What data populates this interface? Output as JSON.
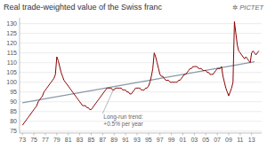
{
  "chart_data": {
    "type": "line",
    "title": "Real trade-weighted value of the Swiss franc",
    "brand": "✲ PICTET",
    "color": "#8b0000",
    "grid": true,
    "ylim": [
      74,
      133
    ],
    "yticks": [
      75,
      80,
      85,
      90,
      95,
      100,
      105,
      110,
      115,
      120,
      125,
      130
    ],
    "categories": [
      "73",
      null,
      null,
      null,
      null,
      null,
      null,
      null,
      "75",
      null,
      null,
      null,
      null,
      null,
      null,
      null,
      "77",
      null,
      null,
      null,
      null,
      null,
      null,
      null,
      "79",
      null,
      null,
      null,
      null,
      null,
      null,
      null,
      "81",
      null,
      null,
      null,
      null,
      null,
      null,
      null,
      "83",
      null,
      null,
      null,
      null,
      null,
      null,
      null,
      "85",
      null,
      null,
      null,
      null,
      null,
      null,
      null,
      "87",
      null,
      null,
      null,
      null,
      null,
      null,
      null,
      "89",
      null,
      null,
      null,
      null,
      null,
      null,
      null,
      "91",
      null,
      null,
      null,
      null,
      null,
      null,
      null,
      "93",
      null,
      null,
      null,
      null,
      null,
      null,
      null,
      "95",
      null,
      null,
      null,
      null,
      null,
      null,
      null,
      "97",
      null,
      null,
      null,
      null,
      null,
      null,
      null,
      "99",
      null,
      null,
      null,
      null,
      null,
      null,
      null,
      "01",
      null,
      null,
      null,
      null,
      null,
      null,
      null,
      "03",
      null,
      null,
      null,
      null,
      null,
      null,
      null,
      "05",
      null,
      null,
      null,
      null,
      null,
      null,
      null,
      "07",
      null,
      null,
      null,
      null,
      null,
      null,
      null,
      "09",
      null,
      null,
      null,
      null,
      null,
      null,
      null,
      "11",
      null,
      null,
      null,
      null,
      null,
      null,
      null,
      "13",
      null,
      null,
      null,
      null,
      null
    ],
    "values": [
      78,
      79,
      80,
      81,
      82,
      83,
      84,
      85,
      86,
      87,
      88,
      90,
      91,
      92,
      93,
      95,
      96,
      97,
      98,
      99,
      100,
      101,
      102,
      104,
      113,
      111,
      108,
      105,
      103,
      101,
      100,
      99,
      98,
      97,
      96,
      95,
      94,
      93,
      92,
      91,
      90,
      89,
      88,
      88,
      88,
      87,
      87,
      86,
      86,
      87,
      88,
      89,
      90,
      91,
      92,
      93,
      94,
      95,
      96,
      97,
      97,
      97,
      97,
      96,
      96,
      97,
      97,
      97,
      97,
      97,
      96,
      96,
      96,
      95,
      95,
      94,
      94,
      95,
      96,
      97,
      97,
      97,
      97,
      96,
      96,
      96,
      97,
      97,
      98,
      100,
      103,
      107,
      115,
      113,
      110,
      107,
      104,
      103,
      103,
      102,
      101,
      101,
      101,
      100,
      100,
      100,
      100,
      100,
      100,
      101,
      101,
      102,
      103,
      104,
      104,
      105,
      106,
      107,
      107,
      108,
      108,
      108,
      108,
      107,
      107,
      107,
      106,
      106,
      106,
      105,
      105,
      104,
      104,
      104,
      105,
      106,
      107,
      107,
      107,
      108,
      103,
      100,
      97,
      95,
      93,
      95,
      97,
      100,
      131,
      125,
      119,
      116,
      115,
      114,
      113,
      112,
      113,
      112,
      111,
      110,
      115,
      116,
      115,
      114,
      115,
      116
    ],
    "trend": {
      "x": [
        0,
        162
      ],
      "values": [
        89.5,
        110.5
      ],
      "color": "#8899aa"
    },
    "annotations": [
      {
        "text": "Long-run trend:\n+0.5% per year",
        "xy": [
          64,
          97
        ],
        "xytext": [
          56,
          84
        ]
      }
    ]
  }
}
